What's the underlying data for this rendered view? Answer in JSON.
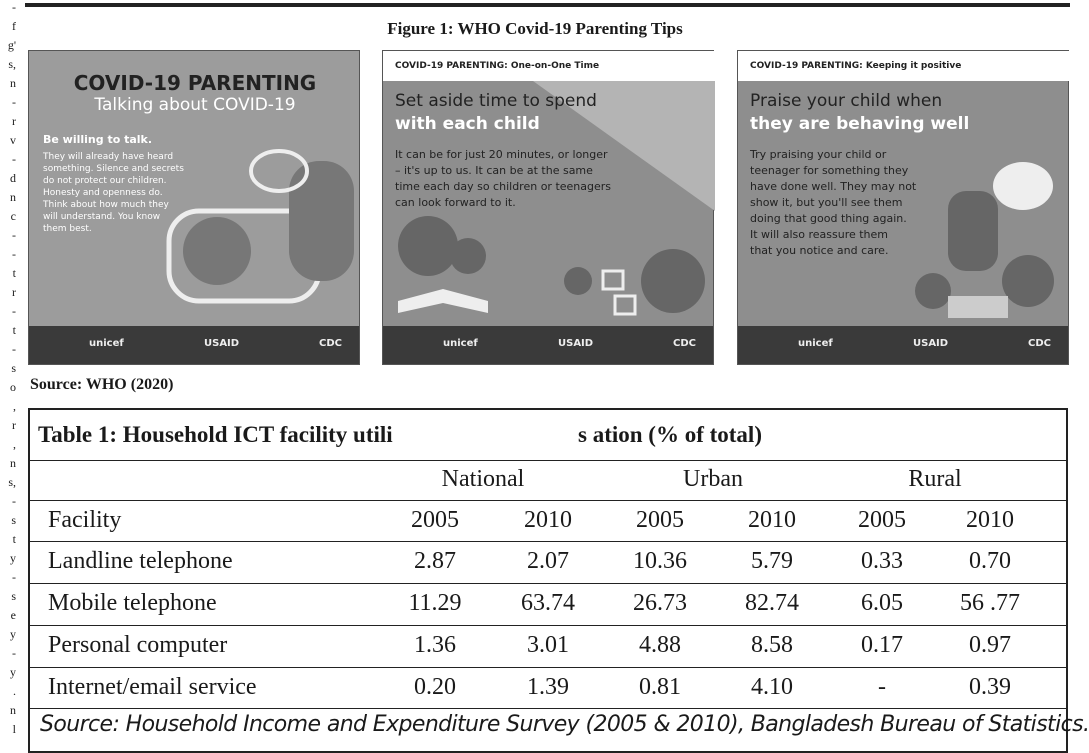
{
  "margin_fragments": [
    "-",
    "f",
    "g'",
    "s,",
    "n",
    "-",
    "r",
    "v",
    "-",
    "d",
    "n",
    "c",
    "-",
    "-",
    "t",
    "r",
    "-",
    "t",
    "-",
    "s",
    "o",
    ",",
    "r",
    ",",
    "n",
    "s,",
    "-",
    "s",
    "t",
    "y",
    "-",
    "s",
    "e",
    "y",
    "-",
    "y",
    ".",
    "n",
    "l"
  ],
  "figure": {
    "caption": "Figure 1: WHO Covid-19 Parenting Tips",
    "panels": [
      {
        "title": "COVID-19 PARENTING",
        "subtitle": "Talking about COVID-19",
        "heading": "Be willing to talk.",
        "body": [
          "They will already have heard",
          "something. Silence and secrets",
          "do not protect our children.",
          "Honesty and openness do.",
          "Think about how much they",
          "will understand. You know",
          "them best."
        ]
      },
      {
        "header": "COVID-19 PARENTING: One-on-One Time",
        "heading_line1": "Set aside time to spend",
        "heading_line2": "with each child",
        "body": [
          "It can be for just 20 minutes, or longer",
          "– it's up to us. It can be at the same",
          "time each day so children or teenagers",
          "can look forward to it."
        ]
      },
      {
        "header": "COVID-19 PARENTING: Keeping it positive",
        "heading_line1": "Praise your child when",
        "heading_line2": "they are behaving well",
        "body": [
          "Try praising your child or",
          "teenager for something they",
          "have done well. They may not",
          "show it, but you'll see them",
          "doing that good thing again.",
          "It will also reassure them",
          "that you notice and care."
        ]
      }
    ],
    "logos": [
      "unicef",
      "USAID",
      "CDC"
    ]
  },
  "figure_source": "Source: WHO (2020)",
  "table": {
    "title": "Table 1: Household ICT facility utili",
    "title_tail": "s ation (% of total)",
    "groups": [
      "National",
      "Urban",
      "Rural"
    ],
    "header": [
      "Facility",
      "2005",
      "2010",
      "2005",
      "2010",
      "2005",
      "2010"
    ],
    "rows": [
      [
        "Landline telephone",
        "2.87",
        "2.07",
        "10.36",
        "5.79",
        "0.33",
        "0.70"
      ],
      [
        "Mobile telephone",
        "11.29",
        "63.74",
        "26.73",
        "82.74",
        "6.05",
        "56 .77"
      ],
      [
        "Personal computer",
        "1.36",
        "3.01",
        "4.88",
        "8.58",
        "0.17",
        "0.97"
      ],
      [
        "Internet/email service",
        "0.20",
        "1.39",
        "0.81",
        "4.10",
        "-",
        "0.39"
      ]
    ],
    "source": "Source: Household Income and Expenditure Survey (2005 & 2010), Bangladesh Bureau of Statistics."
  }
}
